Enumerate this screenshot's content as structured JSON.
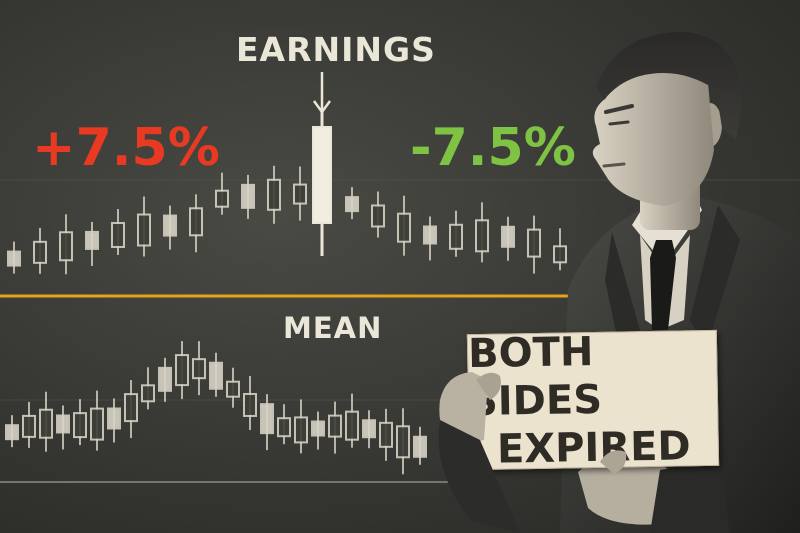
{
  "labels": {
    "event": "EARNINGS",
    "up_move": "+7.5%",
    "down_move": "-7.5%",
    "mean": "MEAN"
  },
  "sign": {
    "line1": "BOTH SIDES",
    "line2": "EXPIRED"
  },
  "colors": {
    "background": "#3a3a36",
    "up_move": "#e83a22",
    "down_move": "#7fc345",
    "mean_line": "#e7a21c",
    "chalk": "#ebe7d8",
    "sign_card": "#ece3cf"
  }
}
